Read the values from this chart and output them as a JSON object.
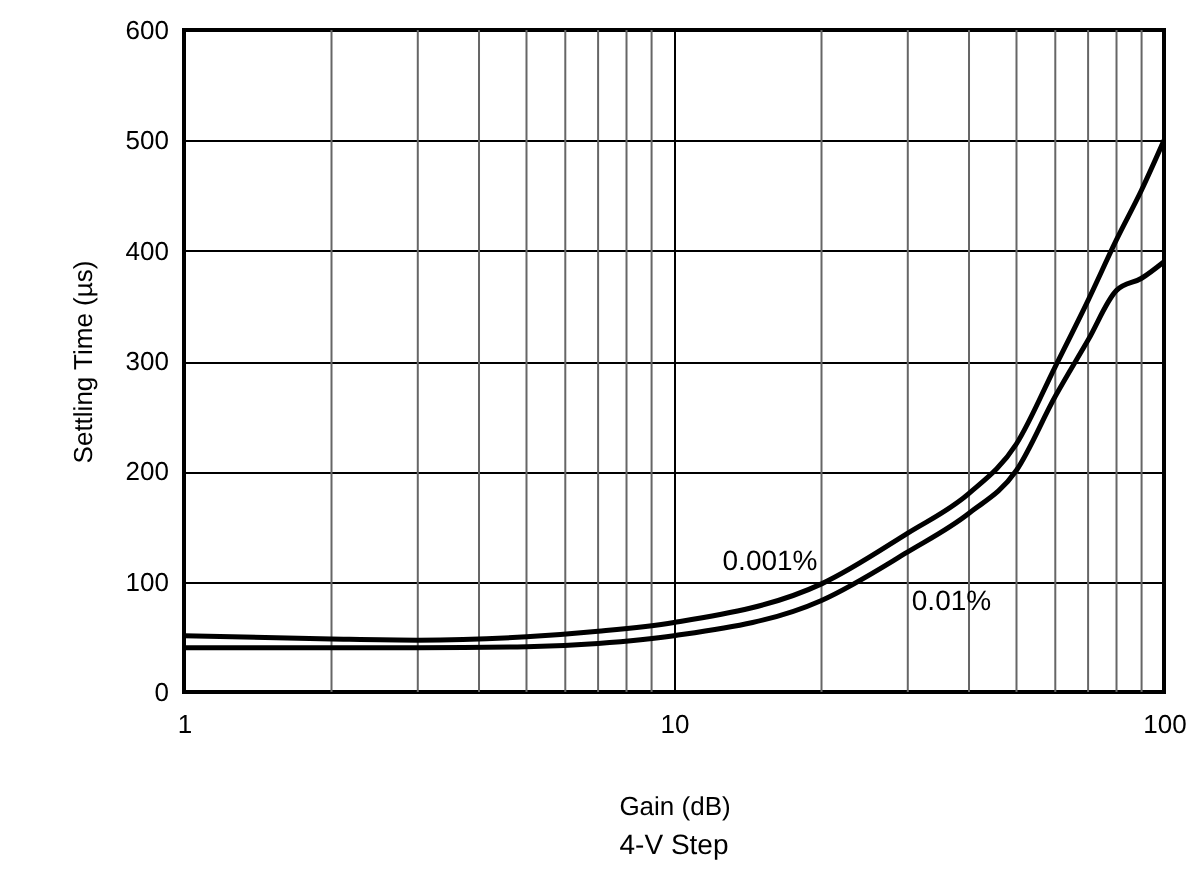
{
  "chart_data": {
    "type": "line",
    "xlabel": "Gain (dB)",
    "ylabel": "Settling Time (µs)",
    "log": "x",
    "xlim": [
      1,
      100
    ],
    "xticks": [
      1,
      10,
      100
    ],
    "ylim": [
      0,
      600
    ],
    "yticks": [
      0,
      100,
      200,
      300,
      400,
      500,
      600
    ],
    "grid": true,
    "line_style": "solid",
    "marker": "none",
    "x": [
      1,
      2,
      3,
      5,
      7,
      10,
      20,
      30,
      40,
      50,
      60,
      70,
      80,
      90,
      100
    ],
    "series": [
      {
        "name": "0.001%",
        "color": "#000000",
        "values": [
          51,
          48,
          47,
          50,
          55,
          63,
          98,
          144,
          180,
          225,
          295,
          355,
          410,
          455,
          500
        ]
      },
      {
        "name": "0.01%",
        "color": "#000000",
        "values": [
          40,
          40,
          40,
          41,
          44,
          51,
          83,
          127,
          162,
          201,
          268,
          319,
          364,
          375,
          390
        ]
      }
    ],
    "annotations": [
      "4-V Step"
    ]
  }
}
